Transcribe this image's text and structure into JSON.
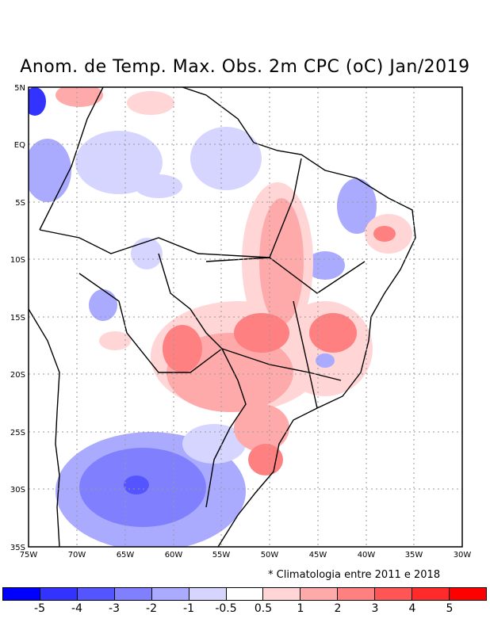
{
  "title": "Anom. de Temp. Max. Obs. 2m CPC (oC) Jan/2019",
  "note": "* Climatologia entre 2011 e 2018",
  "lat_labels": [
    "5N",
    "EQ",
    "5S",
    "10S",
    "15S",
    "20S",
    "25S",
    "30S",
    "35S"
  ],
  "lon_labels": [
    "75W",
    "70W",
    "65W",
    "60W",
    "55W",
    "50W",
    "45W",
    "40W",
    "35W",
    "30W"
  ],
  "colorbar": {
    "colors": [
      "#0000ff",
      "#3333ff",
      "#5555ff",
      "#8080ff",
      "#aaaaff",
      "#d5d5ff",
      "#ffffff",
      "#ffd5d5",
      "#ffaaaa",
      "#ff8080",
      "#ff5555",
      "#ff2a2a",
      "#ff0000"
    ],
    "labels": [
      "-5",
      "-4",
      "-3",
      "-2",
      "-1",
      "-0.5",
      "0.5",
      "1",
      "2",
      "3",
      "4",
      "5"
    ]
  }
}
